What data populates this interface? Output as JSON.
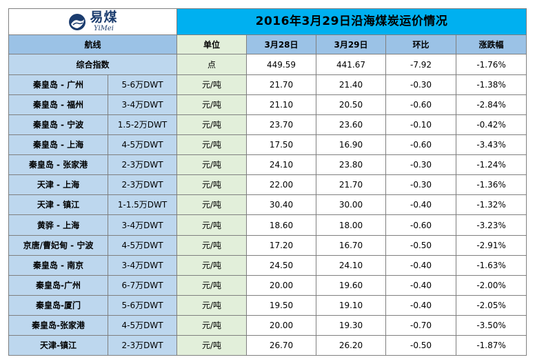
{
  "logo": {
    "main": "易煤",
    "sub": "YiMei"
  },
  "title": "2016年3月29日沿海煤炭运价情况",
  "headers": {
    "route": "航线",
    "unit": "单位",
    "date1": "3月28日",
    "date2": "3月29日",
    "mom": "环比",
    "change": "涨跌幅"
  },
  "index_row": {
    "label": "综合指数",
    "unit": "点",
    "v1": "449.59",
    "v2": "441.67",
    "mom": "-7.92",
    "pct": "-1.76%"
  },
  "rows": [
    {
      "route": "秦皇岛 - 广州",
      "spec": "5-6万DWT",
      "unit": "元/吨",
      "v1": "21.70",
      "v2": "21.40",
      "mom": "-0.30",
      "pct": "-1.38%"
    },
    {
      "route": "秦皇岛 - 福州",
      "spec": "3-4万DWT",
      "unit": "元/吨",
      "v1": "21.10",
      "v2": "20.50",
      "mom": "-0.60",
      "pct": "-2.84%"
    },
    {
      "route": "秦皇岛 - 宁波",
      "spec": "1.5-2万DWT",
      "unit": "元/吨",
      "v1": "23.70",
      "v2": "23.60",
      "mom": "-0.10",
      "pct": "-0.42%"
    },
    {
      "route": "秦皇岛 - 上海",
      "spec": "4-5万DWT",
      "unit": "元/吨",
      "v1": "17.50",
      "v2": "16.90",
      "mom": "-0.60",
      "pct": "-3.43%"
    },
    {
      "route": "秦皇岛 - 张家港",
      "spec": "2-3万DWT",
      "unit": "元/吨",
      "v1": "24.10",
      "v2": "23.80",
      "mom": "-0.30",
      "pct": "-1.24%"
    },
    {
      "route": "天津 - 上海",
      "spec": "2-3万DWT",
      "unit": "元/吨",
      "v1": "22.00",
      "v2": "21.70",
      "mom": "-0.30",
      "pct": "-1.36%"
    },
    {
      "route": "天津 - 镇江",
      "spec": "1-1.5万DWT",
      "unit": "元/吨",
      "v1": "30.40",
      "v2": "30.00",
      "mom": "-0.40",
      "pct": "-1.32%"
    },
    {
      "route": "黄骅 - 上海",
      "spec": "3-4万DWT",
      "unit": "元/吨",
      "v1": "18.60",
      "v2": "18.00",
      "mom": "-0.60",
      "pct": "-3.23%"
    },
    {
      "route": "京唐/曹妃甸 - 宁波",
      "spec": "4-5万DWT",
      "unit": "元/吨",
      "v1": "17.20",
      "v2": "16.70",
      "mom": "-0.50",
      "pct": "-2.91%"
    },
    {
      "route": "秦皇岛 - 南京",
      "spec": "3-4万DWT",
      "unit": "元/吨",
      "v1": "24.50",
      "v2": "24.10",
      "mom": "-0.40",
      "pct": "-1.63%"
    },
    {
      "route": "秦皇岛-广州",
      "spec": "6-7万DWT",
      "unit": "元/吨",
      "v1": "20.00",
      "v2": "19.60",
      "mom": "-0.40",
      "pct": "-2.00%"
    },
    {
      "route": "秦皇岛-厦门",
      "spec": "5-6万DWT",
      "unit": "元/吨",
      "v1": "19.50",
      "v2": "19.10",
      "mom": "-0.40",
      "pct": "-2.05%"
    },
    {
      "route": "秦皇岛-张家港",
      "spec": "4-5万DWT",
      "unit": "元/吨",
      "v1": "20.00",
      "v2": "19.30",
      "mom": "-0.70",
      "pct": "-3.50%"
    },
    {
      "route": "天津-镇江",
      "spec": "2-3万DWT",
      "unit": "元/吨",
      "v1": "26.70",
      "v2": "26.20",
      "mom": "-0.50",
      "pct": "-1.87%"
    }
  ],
  "colors": {
    "title_bg": "#00b0f0",
    "header_bg": "#9bc2e6",
    "route_bg": "#bdd7ee",
    "unit_bg": "#e2efda",
    "logo_text": "#1b3c6e"
  },
  "icons": {
    "logo": "yimei-logo-icon"
  }
}
